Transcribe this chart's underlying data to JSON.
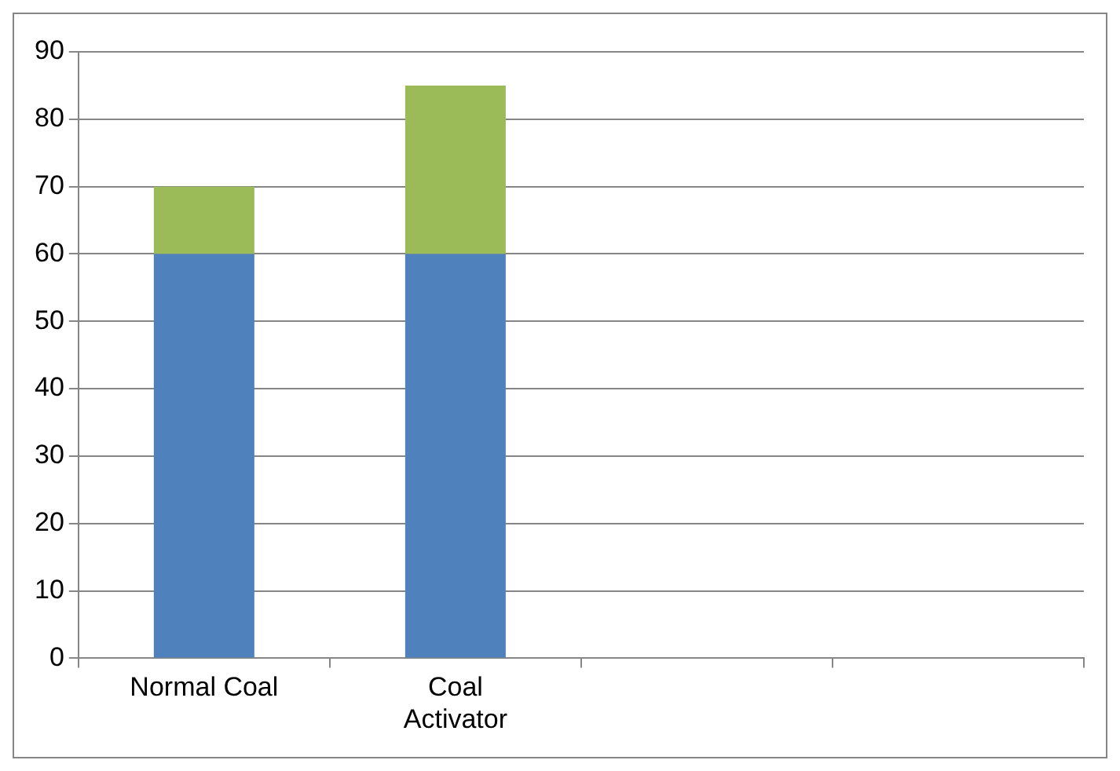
{
  "chart_data": {
    "type": "bar",
    "stacked": true,
    "categories": [
      "Normal Coal",
      "Coal Activator",
      null,
      null
    ],
    "series": [
      {
        "color": "#4f81bd",
        "values": [
          60,
          60,
          null,
          null
        ]
      },
      {
        "color": "#9bbb59",
        "values": [
          10,
          25,
          null,
          null
        ]
      }
    ],
    "ylim": [
      0,
      90
    ],
    "yticks": [
      0,
      10,
      20,
      30,
      40,
      50,
      60,
      70,
      80,
      90
    ],
    "grid": "y",
    "legend": false
  }
}
